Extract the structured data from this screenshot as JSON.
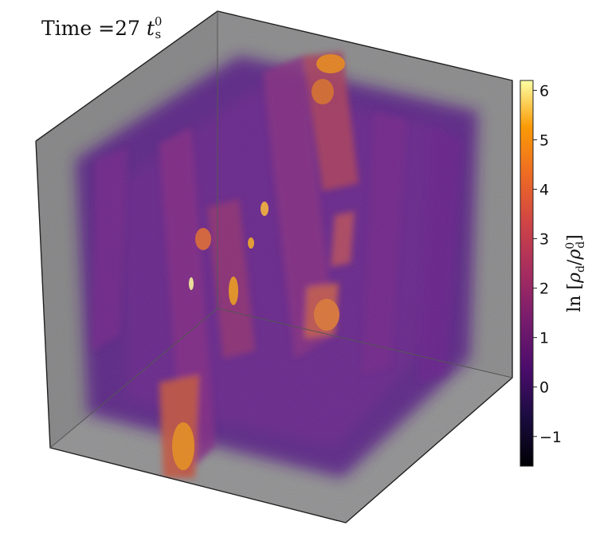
{
  "annotation": {
    "time_prefix": "Time",
    "time_equals": "=",
    "time_value": "27",
    "time_symbol": "t",
    "time_subscript": "s",
    "time_superscript": "0"
  },
  "volume_render": {
    "colormap": "inferno",
    "background_color": "#8c8c8c",
    "edge_color": "#222222"
  },
  "colorbar": {
    "label": "ln [ρd/ρd0]",
    "ticks": [
      "−1",
      "0",
      "1",
      "2",
      "3",
      "4",
      "5",
      "6"
    ],
    "tick_values": [
      -1,
      0,
      1,
      2,
      3,
      4,
      5,
      6
    ],
    "range": [
      -1.6,
      6.2
    ]
  }
}
